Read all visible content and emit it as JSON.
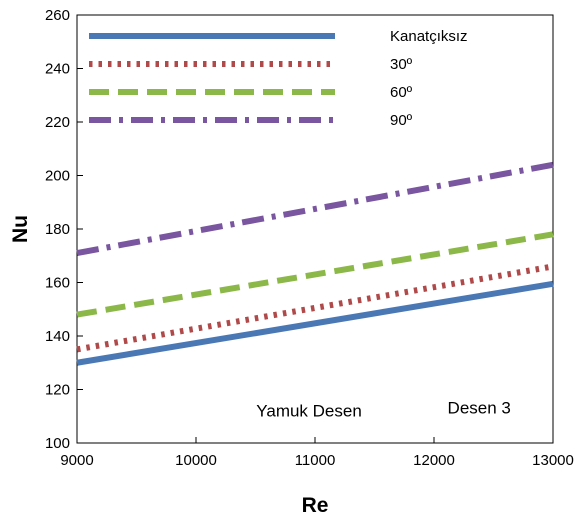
{
  "chart_data": {
    "type": "line",
    "title": "",
    "xlabel": "Re",
    "ylabel": "Nu",
    "xlim": [
      9000,
      13000
    ],
    "ylim": [
      100,
      260
    ],
    "xticks": [
      9000,
      10000,
      11000,
      12000,
      13000
    ],
    "yticks": [
      100,
      120,
      140,
      160,
      180,
      200,
      220,
      240,
      260
    ],
    "grid": false,
    "legend_position": "top-left",
    "series": [
      {
        "name": "Kanatçıksız",
        "color": "#4a78b5",
        "dash": "solid",
        "x": [
          9000,
          13000
        ],
        "y": [
          130,
          159.5
        ]
      },
      {
        "name": "30º",
        "color": "#b04a4a",
        "dash": "dotted",
        "x": [
          9000,
          13000
        ],
        "y": [
          135,
          166
        ]
      },
      {
        "name": "60º",
        "color": "#8cb84a",
        "dash": "dashed",
        "x": [
          9000,
          13000
        ],
        "y": [
          148,
          178
        ]
      },
      {
        "name": "90º",
        "color": "#7a55a0",
        "dash": "dashdot",
        "x": [
          9000,
          13000
        ],
        "y": [
          171,
          204
        ]
      }
    ],
    "annotations": [
      {
        "text": "Yamuk Desen",
        "x": 10950,
        "y": 110
      },
      {
        "text": "Desen 3",
        "x": 12380,
        "y": 111
      }
    ]
  }
}
